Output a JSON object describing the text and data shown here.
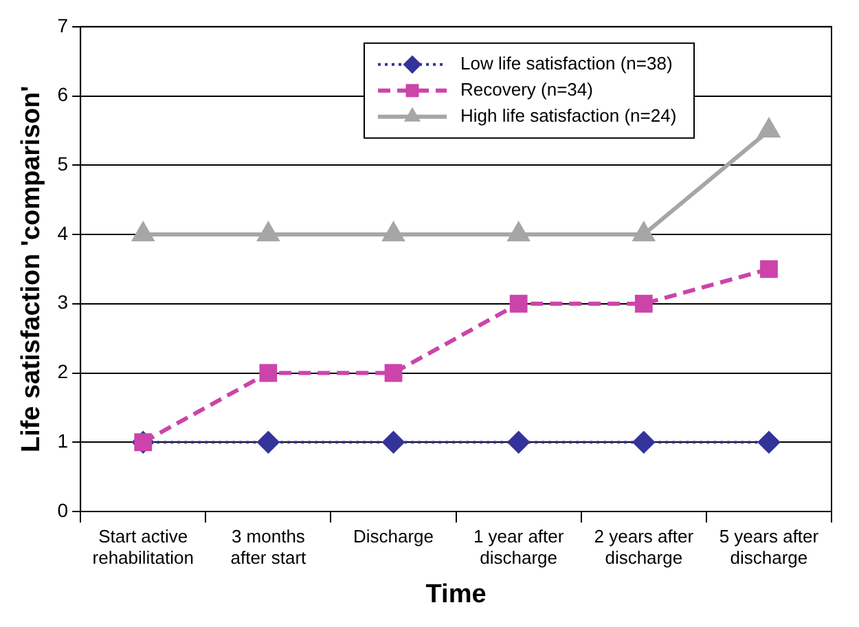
{
  "chart_data": {
    "type": "line",
    "xlabel": "Time",
    "ylabel": "Life satisfaction 'comparison'",
    "categories": [
      "Start active\nrehabilitation",
      "3 months\nafter start",
      "Discharge",
      "1 year after\ndischarge",
      "2 years after\ndischarge",
      "5 years after\ndischarge"
    ],
    "series": [
      {
        "name": "Low life satisfaction (n=38)",
        "color": "#333399",
        "marker": "diamond",
        "line_style": "dotted",
        "values": [
          1,
          1,
          1,
          1,
          1,
          1
        ]
      },
      {
        "name": "Recovery (n=34)",
        "color": "#cc44aa",
        "marker": "square",
        "line_style": "dashed",
        "values": [
          1,
          2,
          2,
          3,
          3,
          3.5
        ]
      },
      {
        "name": "High life satisfaction (n=24)",
        "color": "#a6a6a6",
        "marker": "triangle",
        "line_style": "solid",
        "values": [
          4,
          4,
          4,
          4,
          4,
          5.5
        ]
      }
    ],
    "ylim": [
      0,
      7
    ],
    "yticks": [
      0,
      1,
      2,
      3,
      4,
      5,
      6,
      7
    ],
    "grid": "y",
    "legend": "top right"
  }
}
